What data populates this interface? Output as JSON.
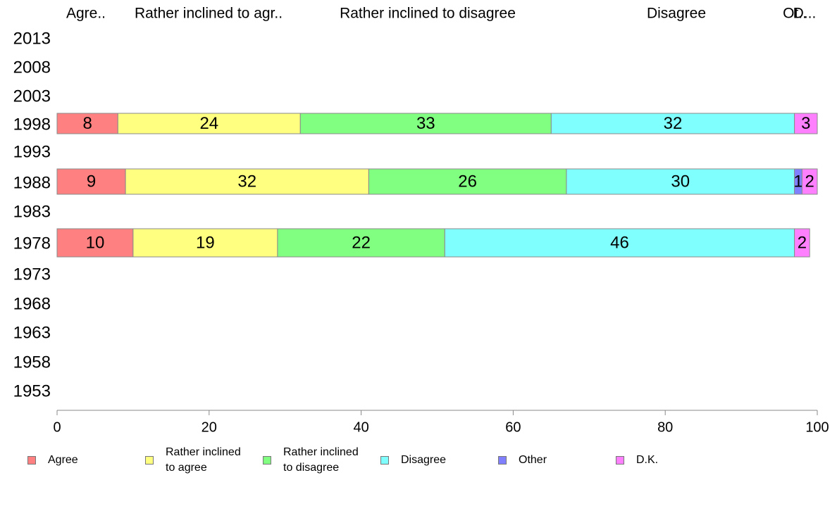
{
  "chart_data": {
    "type": "bar",
    "orientation": "horizontal",
    "stacked": true,
    "categories": [
      "2013",
      "2008",
      "2003",
      "1998",
      "1993",
      "1988",
      "1983",
      "1978",
      "1973",
      "1968",
      "1963",
      "1958",
      "1953"
    ],
    "column_headers": [
      "Agre..",
      "Rather inclined to agr..",
      "Rather inclined to disagree",
      "Disagree",
      "Ot..",
      "D..."
    ],
    "series": [
      {
        "name": "Agree",
        "color": "#ff8080",
        "values": [
          null,
          null,
          null,
          8,
          null,
          9,
          null,
          10,
          null,
          null,
          null,
          null,
          null
        ]
      },
      {
        "name": "Rather inclined\nto agree",
        "color": "#ffff80",
        "values": [
          null,
          null,
          null,
          24,
          null,
          32,
          null,
          19,
          null,
          null,
          null,
          null,
          null
        ]
      },
      {
        "name": "Rather inclined\nto disagree",
        "color": "#80ff80",
        "values": [
          null,
          null,
          null,
          33,
          null,
          26,
          null,
          22,
          null,
          null,
          null,
          null,
          null
        ]
      },
      {
        "name": "Disagree",
        "color": "#80ffff",
        "values": [
          null,
          null,
          null,
          32,
          null,
          30,
          null,
          46,
          null,
          null,
          null,
          null,
          null
        ]
      },
      {
        "name": "Other",
        "color": "#8080ff",
        "values": [
          null,
          null,
          null,
          0,
          null,
          1,
          null,
          0,
          null,
          null,
          null,
          null,
          null
        ]
      },
      {
        "name": "D.K.",
        "color": "#ff80ff",
        "values": [
          null,
          null,
          null,
          3,
          null,
          2,
          null,
          2,
          null,
          null,
          null,
          null,
          null
        ]
      }
    ],
    "xlim": [
      0,
      100
    ],
    "xticks": [
      "0",
      "20",
      "40",
      "60",
      "80",
      "100"
    ],
    "grid": false,
    "legend_position": "bottom"
  }
}
